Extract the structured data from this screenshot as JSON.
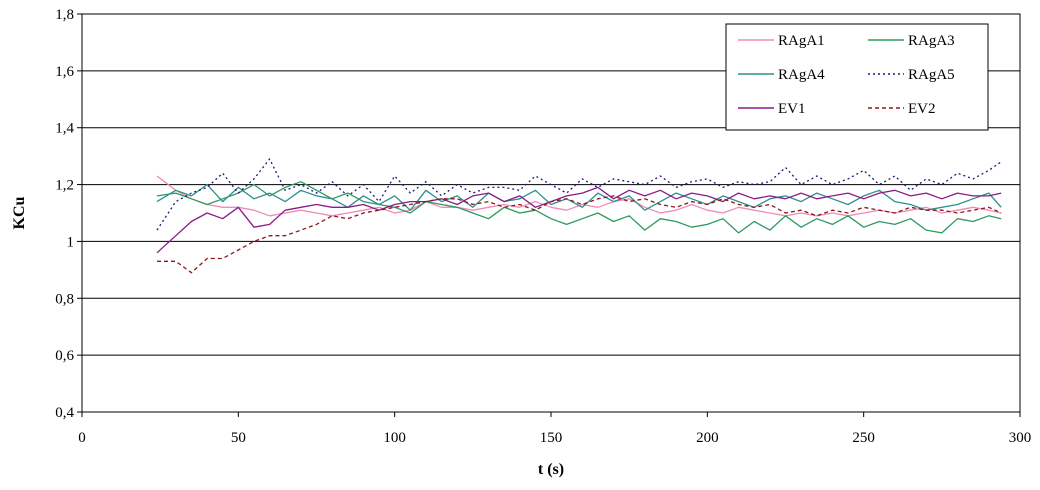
{
  "chart_data": {
    "type": "line",
    "title": "",
    "xlabel": "t (s)",
    "ylabel": "KCu",
    "xlim": [
      0,
      300
    ],
    "ylim": [
      0.4,
      1.8
    ],
    "x_ticks": [
      "0",
      "50",
      "100",
      "150",
      "200",
      "250",
      "300"
    ],
    "y_ticks": [
      "0,4",
      "0,6",
      "0,8",
      "1",
      "1,2",
      "1,4",
      "1,6",
      "1,8"
    ],
    "grid": "horizontal",
    "legend_position": "top-right",
    "series": [
      {
        "name": "RAgA1",
        "color": "#f08bb8",
        "dash": "solid",
        "x": [
          24,
          30,
          35,
          40,
          45,
          50,
          55,
          60,
          65,
          70,
          75,
          80,
          85,
          90,
          95,
          100,
          105,
          110,
          115,
          120,
          125,
          130,
          135,
          140,
          145,
          150,
          155,
          160,
          165,
          170,
          175,
          180,
          185,
          190,
          195,
          200,
          205,
          210,
          215,
          220,
          225,
          230,
          235,
          240,
          245,
          250,
          255,
          260,
          265,
          270,
          275,
          280,
          285,
          290,
          294
        ],
        "y": [
          1.23,
          1.18,
          1.15,
          1.13,
          1.12,
          1.12,
          1.11,
          1.09,
          1.1,
          1.11,
          1.1,
          1.09,
          1.1,
          1.11,
          1.12,
          1.1,
          1.11,
          1.14,
          1.12,
          1.12,
          1.11,
          1.12,
          1.13,
          1.12,
          1.14,
          1.12,
          1.11,
          1.13,
          1.12,
          1.14,
          1.15,
          1.12,
          1.1,
          1.11,
          1.13,
          1.11,
          1.1,
          1.12,
          1.11,
          1.1,
          1.09,
          1.1,
          1.09,
          1.1,
          1.09,
          1.1,
          1.11,
          1.1,
          1.11,
          1.12,
          1.1,
          1.11,
          1.12,
          1.11,
          1.1
        ]
      },
      {
        "name": "RAgA3",
        "color": "#2e9a5e",
        "dash": "solid",
        "x": [
          24,
          30,
          35,
          40,
          45,
          50,
          55,
          60,
          65,
          70,
          75,
          80,
          85,
          90,
          95,
          100,
          105,
          110,
          115,
          120,
          125,
          130,
          135,
          140,
          145,
          150,
          155,
          160,
          165,
          170,
          175,
          180,
          185,
          190,
          195,
          200,
          205,
          210,
          215,
          220,
          225,
          230,
          235,
          240,
          245,
          250,
          255,
          260,
          265,
          270,
          275,
          280,
          285,
          290,
          294
        ],
        "y": [
          1.16,
          1.17,
          1.15,
          1.13,
          1.15,
          1.17,
          1.2,
          1.16,
          1.19,
          1.21,
          1.18,
          1.15,
          1.17,
          1.14,
          1.13,
          1.12,
          1.1,
          1.14,
          1.13,
          1.12,
          1.1,
          1.08,
          1.12,
          1.1,
          1.11,
          1.08,
          1.06,
          1.08,
          1.1,
          1.07,
          1.09,
          1.04,
          1.08,
          1.07,
          1.05,
          1.06,
          1.08,
          1.03,
          1.07,
          1.04,
          1.09,
          1.05,
          1.08,
          1.06,
          1.09,
          1.05,
          1.07,
          1.06,
          1.08,
          1.04,
          1.03,
          1.08,
          1.07,
          1.09,
          1.08
        ]
      },
      {
        "name": "RAgA4",
        "color": "#2e8f8f",
        "dash": "solid",
        "x": [
          24,
          30,
          35,
          40,
          45,
          50,
          55,
          60,
          65,
          70,
          75,
          80,
          85,
          90,
          95,
          100,
          105,
          110,
          115,
          120,
          125,
          130,
          135,
          140,
          145,
          150,
          155,
          160,
          165,
          170,
          175,
          180,
          185,
          190,
          195,
          200,
          205,
          210,
          215,
          220,
          225,
          230,
          235,
          240,
          245,
          250,
          255,
          260,
          265,
          270,
          275,
          280,
          285,
          290,
          294
        ],
        "y": [
          1.14,
          1.18,
          1.16,
          1.2,
          1.14,
          1.19,
          1.15,
          1.17,
          1.14,
          1.18,
          1.16,
          1.15,
          1.12,
          1.16,
          1.13,
          1.16,
          1.11,
          1.18,
          1.14,
          1.16,
          1.12,
          1.17,
          1.14,
          1.15,
          1.18,
          1.13,
          1.15,
          1.12,
          1.17,
          1.14,
          1.16,
          1.11,
          1.14,
          1.17,
          1.15,
          1.13,
          1.16,
          1.14,
          1.12,
          1.15,
          1.16,
          1.14,
          1.17,
          1.15,
          1.13,
          1.16,
          1.18,
          1.14,
          1.13,
          1.11,
          1.12,
          1.13,
          1.15,
          1.17,
          1.12
        ]
      },
      {
        "name": "RAgA5",
        "color": "#1a1a7a",
        "dash": "dotted",
        "x": [
          24,
          30,
          35,
          40,
          45,
          50,
          55,
          60,
          65,
          70,
          75,
          80,
          85,
          90,
          95,
          100,
          105,
          110,
          115,
          120,
          125,
          130,
          135,
          140,
          145,
          150,
          155,
          160,
          165,
          170,
          175,
          180,
          185,
          190,
          195,
          200,
          205,
          210,
          215,
          220,
          225,
          230,
          235,
          240,
          245,
          250,
          255,
          260,
          265,
          270,
          275,
          280,
          285,
          290,
          294
        ],
        "y": [
          1.04,
          1.14,
          1.17,
          1.19,
          1.24,
          1.17,
          1.22,
          1.29,
          1.18,
          1.2,
          1.17,
          1.21,
          1.16,
          1.2,
          1.14,
          1.23,
          1.17,
          1.21,
          1.16,
          1.2,
          1.17,
          1.19,
          1.19,
          1.18,
          1.23,
          1.2,
          1.17,
          1.22,
          1.19,
          1.22,
          1.21,
          1.2,
          1.23,
          1.19,
          1.21,
          1.22,
          1.19,
          1.21,
          1.2,
          1.21,
          1.26,
          1.2,
          1.23,
          1.2,
          1.22,
          1.25,
          1.2,
          1.23,
          1.18,
          1.22,
          1.2,
          1.24,
          1.22,
          1.25,
          1.28
        ]
      },
      {
        "name": "EV1",
        "color": "#8b1a8b",
        "dash": "solid",
        "x": [
          24,
          30,
          35,
          40,
          45,
          50,
          55,
          60,
          65,
          70,
          75,
          80,
          85,
          90,
          95,
          100,
          105,
          110,
          115,
          120,
          125,
          130,
          135,
          140,
          145,
          150,
          155,
          160,
          165,
          170,
          175,
          180,
          185,
          190,
          195,
          200,
          205,
          210,
          215,
          220,
          225,
          230,
          235,
          240,
          245,
          250,
          255,
          260,
          265,
          270,
          275,
          280,
          285,
          290,
          294
        ],
        "y": [
          0.96,
          1.02,
          1.07,
          1.1,
          1.08,
          1.12,
          1.05,
          1.06,
          1.11,
          1.12,
          1.13,
          1.12,
          1.12,
          1.13,
          1.11,
          1.13,
          1.14,
          1.14,
          1.15,
          1.13,
          1.16,
          1.17,
          1.14,
          1.16,
          1.12,
          1.14,
          1.16,
          1.17,
          1.19,
          1.15,
          1.18,
          1.16,
          1.18,
          1.15,
          1.17,
          1.16,
          1.14,
          1.17,
          1.15,
          1.16,
          1.15,
          1.17,
          1.15,
          1.16,
          1.17,
          1.15,
          1.17,
          1.18,
          1.16,
          1.17,
          1.15,
          1.17,
          1.16,
          1.16,
          1.17
        ]
      },
      {
        "name": "EV2",
        "color": "#8b1a1a",
        "dash": "dashed",
        "x": [
          24,
          30,
          35,
          40,
          45,
          50,
          55,
          60,
          65,
          70,
          75,
          80,
          85,
          90,
          95,
          100,
          105,
          110,
          115,
          120,
          125,
          130,
          135,
          140,
          145,
          150,
          155,
          160,
          165,
          170,
          175,
          180,
          185,
          190,
          195,
          200,
          205,
          210,
          215,
          220,
          225,
          230,
          235,
          240,
          245,
          250,
          255,
          260,
          265,
          270,
          275,
          280,
          285,
          290,
          294
        ],
        "y": [
          0.93,
          0.93,
          0.89,
          0.94,
          0.94,
          0.97,
          1.0,
          1.02,
          1.02,
          1.04,
          1.06,
          1.09,
          1.08,
          1.1,
          1.11,
          1.12,
          1.13,
          1.14,
          1.15,
          1.15,
          1.13,
          1.14,
          1.12,
          1.13,
          1.11,
          1.14,
          1.15,
          1.13,
          1.15,
          1.16,
          1.14,
          1.15,
          1.13,
          1.12,
          1.14,
          1.13,
          1.15,
          1.13,
          1.12,
          1.13,
          1.1,
          1.11,
          1.09,
          1.11,
          1.1,
          1.12,
          1.11,
          1.1,
          1.12,
          1.11,
          1.11,
          1.1,
          1.11,
          1.12,
          1.1
        ]
      }
    ]
  }
}
